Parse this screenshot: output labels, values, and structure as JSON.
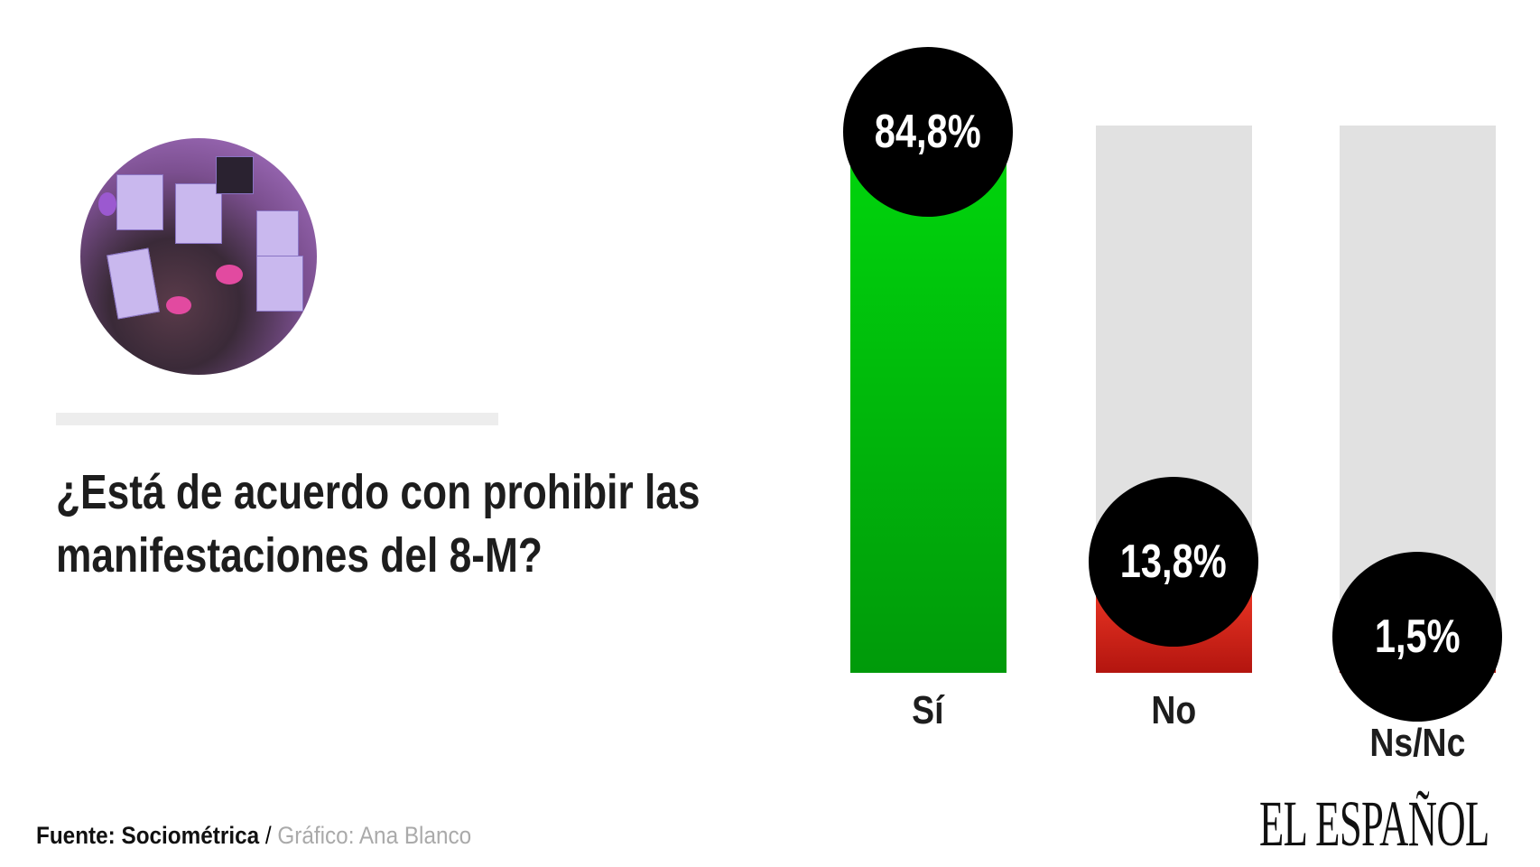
{
  "title": "¿Está de acuerdo con prohibir las manifestaciones del 8-M?",
  "footer": {
    "source": "Fuente: Sociométrica",
    "separator": " / ",
    "credit": "Gráfico: Ana Blanco"
  },
  "logo": "EL ESPAÑOL",
  "chart_data": {
    "type": "bar",
    "title": "¿Está de acuerdo con prohibir las manifestaciones del 8-M?",
    "categories": [
      "Sí",
      "No",
      "Ns/Nc"
    ],
    "values": [
      84.8,
      13.8,
      1.5
    ],
    "labels": [
      "84,8%",
      "13,8%",
      "1,5%"
    ],
    "colors": [
      "#00b80a",
      "#d42a1e",
      "#d42a1e"
    ],
    "track_color": "#e1e1e1",
    "ylim": [
      0,
      100
    ],
    "xlabel": "",
    "ylabel": ""
  }
}
